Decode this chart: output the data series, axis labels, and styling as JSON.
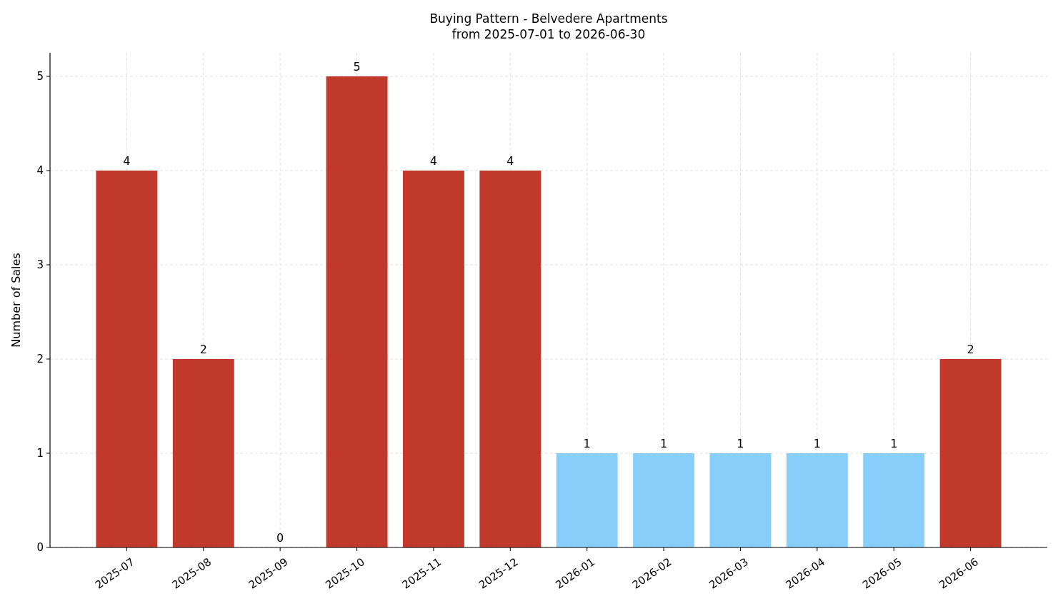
{
  "chart_data": {
    "type": "bar",
    "title": "Buying Pattern - Belvedere Apartments\nfrom 2025-07-01 to 2026-06-30",
    "ylabel": "Number of Sales",
    "categories": [
      "2025-07",
      "2025-08",
      "2025-09",
      "2025-10",
      "2025-11",
      "2025-12",
      "2026-01",
      "2026-02",
      "2026-03",
      "2026-04",
      "2026-05",
      "2026-06"
    ],
    "values": [
      4,
      2,
      0,
      5,
      4,
      4,
      1,
      1,
      1,
      1,
      1,
      2
    ],
    "colors": [
      "#c0392b",
      "#c0392b",
      "#c0392b",
      "#c0392b",
      "#c0392b",
      "#c0392b",
      "#87cefa",
      "#87cefa",
      "#87cefa",
      "#87cefa",
      "#87cefa",
      "#c0392b"
    ],
    "ylim": [
      0,
      5.25
    ],
    "yticks": [
      0,
      1,
      2,
      3,
      4,
      5
    ],
    "grid": true,
    "data_labels": true
  }
}
